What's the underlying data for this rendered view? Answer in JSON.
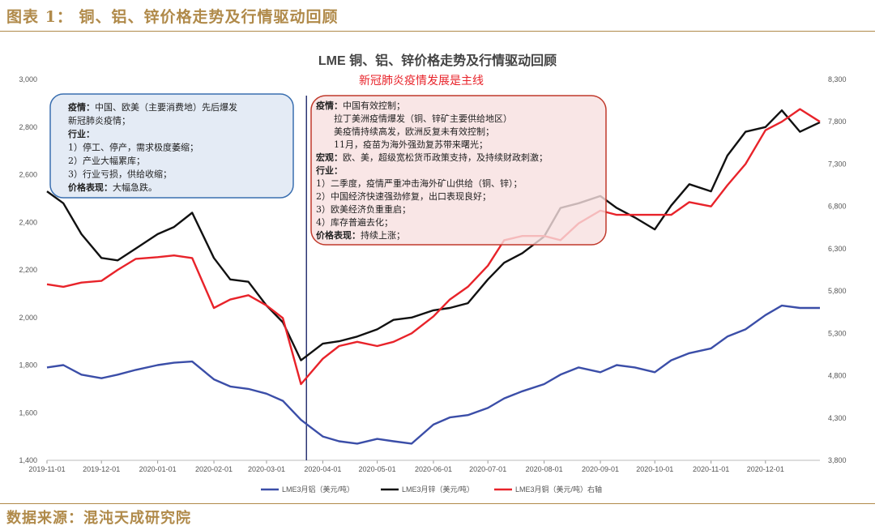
{
  "header": {
    "title": "图表 1： 铜、铝、锌价格走势及行情驱动回顾"
  },
  "source": {
    "text": "数据来源：混沌天成研究院"
  },
  "colors": {
    "aluminum": "#3b4ea8",
    "zinc": "#111111",
    "copper": "#e8232a",
    "accent": "#b08a4a"
  },
  "chart_data": {
    "type": "line",
    "title": "LME 铜、铝、锌价格走势及行情驱动回顾",
    "subtitle": "新冠肺炎疫情发展是主线",
    "left_axis": {
      "ylim": [
        1400,
        3000
      ],
      "ticks": [
        "1,400",
        "1,600",
        "1,800",
        "2,000",
        "2,200",
        "2,400",
        "2,600",
        "2,800",
        "3,000"
      ]
    },
    "right_axis": {
      "ylim": [
        3800,
        8300
      ],
      "ticks": [
        "3,800",
        "4,300",
        "4,800",
        "5,300",
        "5,800",
        "6,300",
        "6,800",
        "7,300",
        "7,800",
        "8,300"
      ]
    },
    "x_axis": {
      "start": "2019-11-01",
      "end": "2020-12-31",
      "ticks": [
        "2019-11-01",
        "2019-12-01",
        "2020-01-01",
        "2020-02-01",
        "2020-03-01",
        "2020-04-01",
        "2020-05-01",
        "2020-06-01",
        "2020-07-01",
        "2020-08-01",
        "2020-09-01",
        "2020-10-01",
        "2020-11-01",
        "2020-12-01"
      ]
    },
    "marker_date": "2020-03-23",
    "series": [
      {
        "name": "LME3月铝（美元/吨）",
        "axis": "left",
        "color": "#3b4ea8",
        "points": [
          [
            "2019-11-01",
            1790
          ],
          [
            "2019-11-10",
            1800
          ],
          [
            "2019-11-20",
            1760
          ],
          [
            "2019-12-01",
            1745
          ],
          [
            "2019-12-10",
            1760
          ],
          [
            "2019-12-20",
            1780
          ],
          [
            "2020-01-01",
            1800
          ],
          [
            "2020-01-10",
            1810
          ],
          [
            "2020-01-20",
            1815
          ],
          [
            "2020-02-01",
            1740
          ],
          [
            "2020-02-10",
            1710
          ],
          [
            "2020-02-20",
            1700
          ],
          [
            "2020-03-01",
            1680
          ],
          [
            "2020-03-10",
            1650
          ],
          [
            "2020-03-20",
            1570
          ],
          [
            "2020-04-01",
            1500
          ],
          [
            "2020-04-10",
            1480
          ],
          [
            "2020-04-20",
            1470
          ],
          [
            "2020-05-01",
            1490
          ],
          [
            "2020-05-10",
            1480
          ],
          [
            "2020-05-20",
            1470
          ],
          [
            "2020-06-01",
            1550
          ],
          [
            "2020-06-10",
            1580
          ],
          [
            "2020-06-20",
            1590
          ],
          [
            "2020-07-01",
            1620
          ],
          [
            "2020-07-10",
            1660
          ],
          [
            "2020-07-20",
            1690
          ],
          [
            "2020-08-01",
            1720
          ],
          [
            "2020-08-10",
            1760
          ],
          [
            "2020-08-20",
            1790
          ],
          [
            "2020-09-01",
            1770
          ],
          [
            "2020-09-10",
            1800
          ],
          [
            "2020-09-20",
            1790
          ],
          [
            "2020-10-01",
            1770
          ],
          [
            "2020-10-10",
            1820
          ],
          [
            "2020-10-20",
            1850
          ],
          [
            "2020-11-01",
            1870
          ],
          [
            "2020-11-10",
            1920
          ],
          [
            "2020-11-20",
            1950
          ],
          [
            "2020-12-01",
            2010
          ],
          [
            "2020-12-10",
            2050
          ],
          [
            "2020-12-20",
            2040
          ],
          [
            "2020-12-31",
            2040
          ]
        ]
      },
      {
        "name": "LME3月锌（美元/吨）",
        "axis": "left",
        "color": "#111111",
        "points": [
          [
            "2019-11-01",
            2530
          ],
          [
            "2019-11-10",
            2480
          ],
          [
            "2019-11-20",
            2350
          ],
          [
            "2019-12-01",
            2250
          ],
          [
            "2019-12-10",
            2240
          ],
          [
            "2019-12-20",
            2290
          ],
          [
            "2020-01-01",
            2350
          ],
          [
            "2020-01-10",
            2380
          ],
          [
            "2020-01-20",
            2440
          ],
          [
            "2020-02-01",
            2250
          ],
          [
            "2020-02-10",
            2160
          ],
          [
            "2020-02-20",
            2150
          ],
          [
            "2020-03-01",
            2050
          ],
          [
            "2020-03-10",
            1980
          ],
          [
            "2020-03-20",
            1820
          ],
          [
            "2020-04-01",
            1890
          ],
          [
            "2020-04-10",
            1900
          ],
          [
            "2020-04-20",
            1920
          ],
          [
            "2020-05-01",
            1950
          ],
          [
            "2020-05-10",
            1990
          ],
          [
            "2020-05-20",
            2000
          ],
          [
            "2020-06-01",
            2030
          ],
          [
            "2020-06-10",
            2040
          ],
          [
            "2020-06-20",
            2060
          ],
          [
            "2020-07-01",
            2160
          ],
          [
            "2020-07-10",
            2230
          ],
          [
            "2020-07-20",
            2270
          ],
          [
            "2020-08-01",
            2340
          ],
          [
            "2020-08-10",
            2460
          ],
          [
            "2020-08-20",
            2480
          ],
          [
            "2020-09-01",
            2510
          ],
          [
            "2020-09-10",
            2460
          ],
          [
            "2020-09-20",
            2420
          ],
          [
            "2020-10-01",
            2370
          ],
          [
            "2020-10-10",
            2470
          ],
          [
            "2020-10-20",
            2560
          ],
          [
            "2020-11-01",
            2530
          ],
          [
            "2020-11-10",
            2680
          ],
          [
            "2020-11-20",
            2780
          ],
          [
            "2020-12-01",
            2800
          ],
          [
            "2020-12-10",
            2870
          ],
          [
            "2020-12-20",
            2780
          ],
          [
            "2020-12-31",
            2820
          ]
        ]
      },
      {
        "name": "LME3月铜（美元/吨）右轴",
        "axis": "right",
        "color": "#e8232a",
        "points": [
          [
            "2019-11-01",
            5880
          ],
          [
            "2019-11-10",
            5850
          ],
          [
            "2019-11-20",
            5900
          ],
          [
            "2019-12-01",
            5920
          ],
          [
            "2019-12-10",
            6050
          ],
          [
            "2019-12-20",
            6180
          ],
          [
            "2020-01-01",
            6200
          ],
          [
            "2020-01-10",
            6220
          ],
          [
            "2020-01-20",
            6190
          ],
          [
            "2020-02-01",
            5600
          ],
          [
            "2020-02-10",
            5700
          ],
          [
            "2020-02-20",
            5750
          ],
          [
            "2020-03-01",
            5630
          ],
          [
            "2020-03-10",
            5480
          ],
          [
            "2020-03-20",
            4700
          ],
          [
            "2020-04-01",
            5000
          ],
          [
            "2020-04-10",
            5150
          ],
          [
            "2020-04-20",
            5200
          ],
          [
            "2020-05-01",
            5150
          ],
          [
            "2020-05-10",
            5200
          ],
          [
            "2020-05-20",
            5300
          ],
          [
            "2020-06-01",
            5500
          ],
          [
            "2020-06-10",
            5700
          ],
          [
            "2020-06-20",
            5850
          ],
          [
            "2020-07-01",
            6100
          ],
          [
            "2020-07-10",
            6400
          ],
          [
            "2020-07-20",
            6450
          ],
          [
            "2020-08-01",
            6450
          ],
          [
            "2020-08-10",
            6400
          ],
          [
            "2020-08-20",
            6600
          ],
          [
            "2020-09-01",
            6750
          ],
          [
            "2020-09-10",
            6700
          ],
          [
            "2020-09-20",
            6700
          ],
          [
            "2020-10-01",
            6700
          ],
          [
            "2020-10-10",
            6700
          ],
          [
            "2020-10-20",
            6850
          ],
          [
            "2020-11-01",
            6800
          ],
          [
            "2020-11-10",
            7050
          ],
          [
            "2020-11-20",
            7300
          ],
          [
            "2020-12-01",
            7700
          ],
          [
            "2020-12-10",
            7800
          ],
          [
            "2020-12-20",
            7950
          ],
          [
            "2020-12-31",
            7800
          ]
        ]
      }
    ],
    "annotations": {
      "left_box": [
        {
          "label": "疫情：",
          "text": "中国、欧美（主要消费地）先后爆发"
        },
        {
          "label": "",
          "text": "新冠肺炎疫情；"
        },
        {
          "label": "行业：",
          "text": ""
        },
        {
          "label": "",
          "text": "1）停工、停产，需求极度萎缩；"
        },
        {
          "label": "",
          "text": "2）产业大幅累库；"
        },
        {
          "label": "",
          "text": "3）行业亏损，供给收缩；"
        },
        {
          "label": "价格表现：",
          "text": "大幅急跌。"
        }
      ],
      "right_box": [
        {
          "label": "疫情：",
          "text": "中国有效控制；"
        },
        {
          "label": "",
          "text": "　　拉丁美洲疫情爆发（铜、锌矿主要供给地区）"
        },
        {
          "label": "",
          "text": "　　美疫情持续高发，欧洲反复未有效控制；"
        },
        {
          "label": "",
          "text": "　　11月，疫苗为海外强劲复苏带来曙光；"
        },
        {
          "label": "宏观：",
          "text": "欧、美，超级宽松货币政策支持，及持续财政刺激；"
        },
        {
          "label": "行业：",
          "text": ""
        },
        {
          "label": "",
          "text": "1）二季度，疫情严重冲击海外矿山供给（铜、锌）；"
        },
        {
          "label": "",
          "text": "2）中国经济快速强劲修复，出口表现良好；"
        },
        {
          "label": "",
          "text": "3）欧美经济负重重启；"
        },
        {
          "label": "",
          "text": "4）库存普遍去化；"
        },
        {
          "label": "价格表现：",
          "text": "持续上涨；"
        }
      ]
    }
  }
}
